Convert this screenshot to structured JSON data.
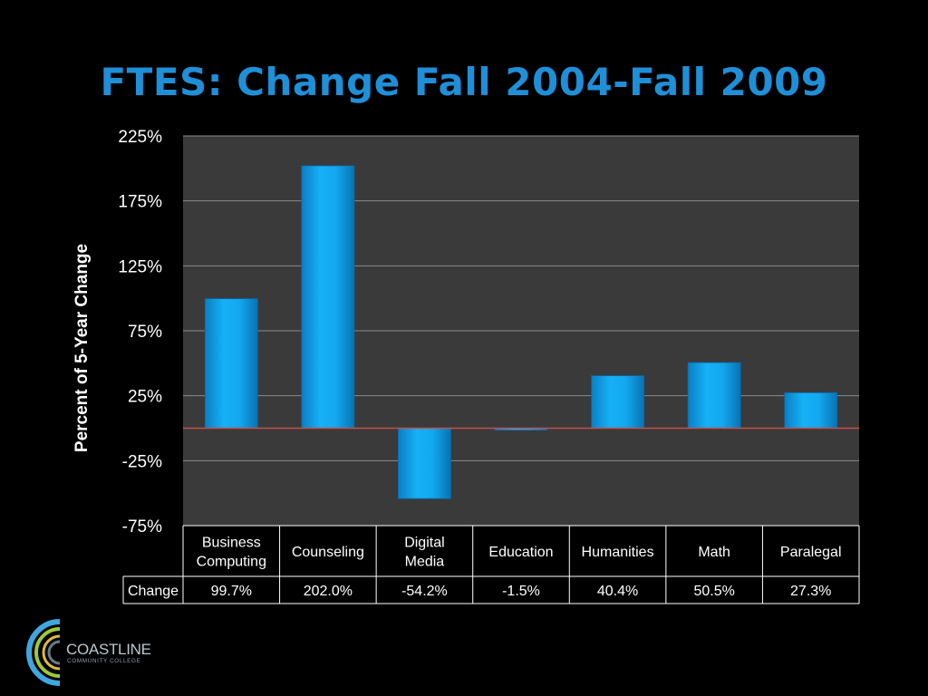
{
  "slide": {
    "title": "FTES: Change Fall 2004-Fall 2009"
  },
  "chart_data": {
    "type": "bar",
    "title": "FTES: Change Fall 2004-Fall 2009",
    "xlabel": "",
    "ylabel": "Percent of 5-Year Change",
    "categories": [
      "Business Computing",
      "Counseling",
      "Digital Media",
      "Education",
      "Humanities",
      "Math",
      "Paralegal"
    ],
    "category_lines": [
      [
        "Business",
        "Computing"
      ],
      [
        "Counseling"
      ],
      [
        "Digital",
        "Media"
      ],
      [
        "Education"
      ],
      [
        "Humanities"
      ],
      [
        "Math"
      ],
      [
        "Paralegal"
      ]
    ],
    "series": [
      {
        "name": "Change",
        "values": [
          99.7,
          202.0,
          -54.2,
          -1.5,
          40.4,
          50.5,
          27.3
        ]
      }
    ],
    "value_labels": [
      "99.7%",
      "202.0%",
      "-54.2%",
      "-1.5%",
      "40.4%",
      "50.5%",
      "27.3%"
    ],
    "yticks": [
      225,
      175,
      125,
      75,
      25,
      -25,
      -75
    ],
    "ytick_labels": [
      "225%",
      "175%",
      "125%",
      "75%",
      "25%",
      "-25%",
      "-75%"
    ],
    "ylim": [
      -75,
      225
    ],
    "grid": true,
    "legend": "data table",
    "colors": {
      "bar": "#0da0ea",
      "plot_bg": "#3a3a3a",
      "gridline": "#8a8a8a",
      "zero_line": "#c0504d"
    }
  },
  "logo": {
    "name": "COASTLINE",
    "subtitle": "COMMUNITY COLLEGE"
  }
}
